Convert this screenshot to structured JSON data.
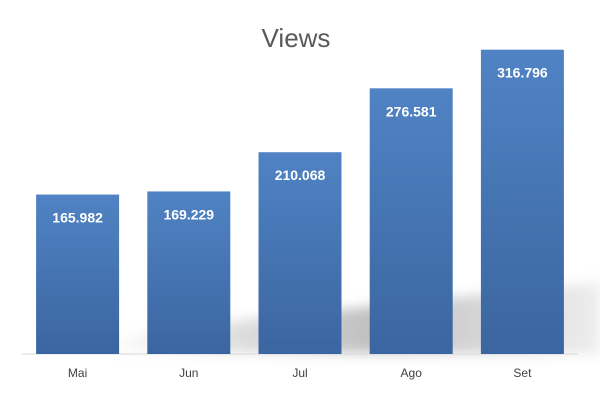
{
  "chart_data": {
    "type": "bar",
    "title": "Views",
    "categories": [
      "Mai",
      "Jun",
      "Jul",
      "Ago",
      "Set"
    ],
    "values": [
      165982,
      169229,
      210068,
      276581,
      316796
    ],
    "value_labels": [
      "165.982",
      "169.229",
      "210.068",
      "276.581",
      "316.796"
    ],
    "ylim": [
      0,
      330000
    ],
    "grid": false,
    "legend": "none",
    "xlabel": "",
    "ylabel": ""
  },
  "colors": {
    "bar_top": "#5083c4",
    "bar_bottom": "#3b65a0",
    "shadow": "#8c8c8c",
    "axis": "#d9d9d9"
  }
}
